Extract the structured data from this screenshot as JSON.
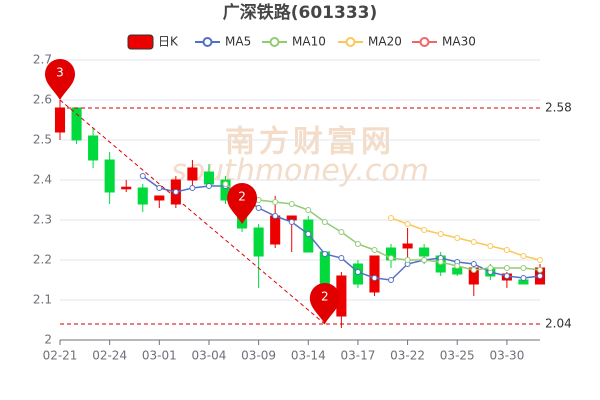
{
  "chart_data": {
    "type": "candlestick",
    "title": "广深铁路(601333)",
    "categories": [
      "02-21",
      null,
      null,
      "02-24",
      null,
      null,
      "03-01",
      null,
      null,
      "03-04",
      null,
      null,
      "03-09",
      null,
      null,
      "03-14",
      null,
      null,
      "03-17",
      null,
      null,
      "03-22",
      null,
      null,
      "03-25",
      null,
      null,
      "03-30",
      null,
      null
    ],
    "candles": {
      "name": "日K",
      "up_color": "#ec0000",
      "down_color": "#00da3c",
      "open": [
        2.52,
        2.58,
        2.51,
        2.45,
        2.378,
        2.38,
        2.35,
        2.34,
        2.4,
        2.42,
        2.4,
        2.32,
        2.28,
        2.24,
        2.3,
        2.3,
        2.22,
        2.06,
        2.19,
        2.12,
        2.23,
        2.23,
        2.23,
        2.21,
        2.18,
        2.14,
        2.18,
        2.15,
        2.15,
        2.14
      ],
      "close": [
        2.58,
        2.5,
        2.45,
        2.37,
        2.382,
        2.34,
        2.36,
        2.4,
        2.43,
        2.39,
        2.35,
        2.28,
        2.21,
        2.31,
        2.31,
        2.22,
        2.06,
        2.16,
        2.14,
        2.21,
        2.2,
        2.24,
        2.21,
        2.17,
        2.165,
        2.18,
        2.16,
        2.165,
        2.14,
        2.18
      ],
      "low": [
        2.5,
        2.49,
        2.43,
        2.34,
        2.37,
        2.32,
        2.33,
        2.33,
        2.38,
        2.38,
        2.34,
        2.27,
        2.13,
        2.23,
        2.22,
        2.22,
        2.04,
        2.03,
        2.13,
        2.11,
        2.18,
        2.2,
        2.19,
        2.16,
        2.16,
        2.11,
        2.15,
        2.13,
        2.14,
        2.14
      ],
      "high": [
        2.6,
        2.58,
        2.53,
        2.47,
        2.4,
        2.39,
        2.36,
        2.41,
        2.45,
        2.44,
        2.41,
        2.33,
        2.29,
        2.36,
        2.31,
        2.31,
        2.22,
        2.17,
        2.2,
        2.21,
        2.24,
        2.28,
        2.24,
        2.22,
        2.18,
        2.19,
        2.19,
        2.17,
        2.16,
        2.19
      ]
    },
    "series": [
      {
        "name": "MA5",
        "color": "#5470c6",
        "values": [
          null,
          null,
          null,
          null,
          null,
          2.41,
          2.38,
          2.37,
          2.38,
          2.385,
          2.385,
          2.36,
          2.33,
          2.31,
          2.295,
          2.265,
          2.215,
          2.205,
          2.17,
          2.155,
          2.15,
          2.19,
          2.2,
          2.205,
          2.195,
          2.19,
          2.17,
          2.16,
          2.155,
          2.16
        ]
      },
      {
        "name": "MA10",
        "color": "#91cc75",
        "values": [
          null,
          null,
          null,
          null,
          null,
          null,
          null,
          null,
          null,
          null,
          2.39,
          2.36,
          2.35,
          2.345,
          2.34,
          2.325,
          2.295,
          2.27,
          2.24,
          2.225,
          2.205,
          2.2,
          2.2,
          2.195,
          2.185,
          2.175,
          2.18,
          2.18,
          2.18,
          2.175
        ]
      },
      {
        "name": "MA20",
        "color": "#fac858",
        "values": [
          null,
          null,
          null,
          null,
          null,
          null,
          null,
          null,
          null,
          null,
          null,
          null,
          null,
          null,
          null,
          null,
          null,
          null,
          null,
          null,
          2.305,
          2.29,
          2.275,
          2.265,
          2.255,
          2.245,
          2.235,
          2.225,
          2.21,
          2.2
        ]
      },
      {
        "name": "MA30",
        "color": "#ee6666",
        "values": [
          null,
          null,
          null,
          null,
          null,
          null,
          null,
          null,
          null,
          null,
          null,
          null,
          null,
          null,
          null,
          null,
          null,
          null,
          null,
          null,
          null,
          null,
          null,
          null,
          null,
          null,
          null,
          null,
          null,
          null
        ]
      }
    ],
    "ylim": [
      2,
      2.7
    ],
    "yticks": [
      2,
      2.1,
      2.2,
      2.3,
      2.4,
      2.5,
      2.6,
      2.7
    ],
    "grid": true,
    "mark_lines": [
      2.58,
      2.04
    ],
    "mark_line_color": "#cc0000",
    "markers": [
      {
        "label": "3",
        "value": 2.6
      },
      {
        "label": "2",
        "value": 2.29
      },
      {
        "label": "2",
        "value": 2.04
      }
    ],
    "marker_color": "#e00000",
    "watermark": "南方财富网",
    "watermark_sub": "southmoney.com"
  }
}
